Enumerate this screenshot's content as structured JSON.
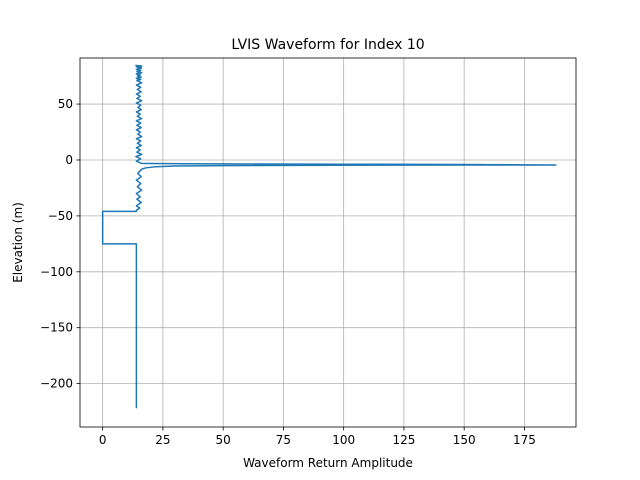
{
  "chart_data": {
    "type": "line",
    "title": "LVIS Waveform for Index 10",
    "xlabel": "Waveform Return Amplitude",
    "ylabel": "Elevation (m)",
    "xlim": [
      -9.4,
      196.4
    ],
    "ylim": [
      -238.8,
      91.2
    ],
    "xticks": [
      0,
      25,
      50,
      75,
      100,
      125,
      150,
      175
    ],
    "yticks": [
      -200,
      -150,
      -100,
      -50,
      0,
      50
    ],
    "xtick_labels": [
      "0",
      "25",
      "50",
      "75",
      "100",
      "125",
      "150",
      "175"
    ],
    "ytick_labels": [
      "−200",
      "−150",
      "−100",
      "−50",
      "0",
      "50"
    ],
    "grid": true,
    "legend": "none",
    "series": [
      {
        "color": "#1f77b4",
        "x": [
          14.0,
          14.0,
          0.0,
          0.0,
          14.0,
          14.0,
          15.4,
          14.0,
          16.0,
          14.2,
          15.6,
          14.0,
          16.2,
          14.4,
          15.8,
          14.0,
          16.0,
          14.6,
          15.4,
          16.4,
          18.0,
          22.0,
          30.0,
          50.0,
          80.0,
          120.0,
          160.0,
          188.0,
          150.0,
          100.0,
          60.0,
          35.0,
          20.0,
          16.0,
          14.0,
          15.8,
          13.8,
          16.2,
          14.2,
          15.6,
          14.0,
          16.0,
          14.4,
          15.8,
          14.0,
          16.2,
          14.6,
          15.6,
          14.0,
          16.0,
          14.2,
          15.8,
          14.0,
          16.2,
          14.4,
          15.6,
          14.0,
          16.0,
          14.6,
          15.8,
          14.0,
          16.2,
          14.2,
          15.6,
          14.0,
          16.0,
          14.4,
          15.8,
          14.0,
          16.2,
          14.2,
          15.8,
          14.0,
          16.0,
          14.4,
          15.6,
          14.0,
          16.2,
          14.2,
          15.8,
          14.0,
          16.0,
          14.6,
          15.8,
          14.0,
          16.2,
          13.8,
          16.0,
          15.0
        ],
        "y": [
          -222.0,
          -75.0,
          -75.0,
          -46.0,
          -46.0,
          -45.0,
          -43.0,
          -41.0,
          -38.0,
          -35.0,
          -33.0,
          -30.0,
          -27.0,
          -24.0,
          -21.0,
          -18.0,
          -15.0,
          -12.0,
          -10.0,
          -8.0,
          -7.0,
          -6.0,
          -5.4,
          -5.0,
          -4.8,
          -4.6,
          -4.5,
          -4.5,
          -4.0,
          -3.8,
          -3.6,
          -3.4,
          -3.2,
          -3.0,
          -1.0,
          1.0,
          3.0,
          5.0,
          7.0,
          9.0,
          11.0,
          13.0,
          15.0,
          17.0,
          19.0,
          21.0,
          23.0,
          25.0,
          27.0,
          29.0,
          31.0,
          33.0,
          35.0,
          37.0,
          39.0,
          41.0,
          43.0,
          45.0,
          47.0,
          49.0,
          51.0,
          53.0,
          55.0,
          57.0,
          59.0,
          61.0,
          63.0,
          65.0,
          67.0,
          69.0,
          71.0,
          72.0,
          73.0,
          74.0,
          75.0,
          76.0,
          77.0,
          78.0,
          79.0,
          80.0,
          81.0,
          82.0,
          82.5,
          83.0,
          83.5,
          84.0,
          84.5,
          83.0,
          82.0
        ]
      }
    ]
  }
}
